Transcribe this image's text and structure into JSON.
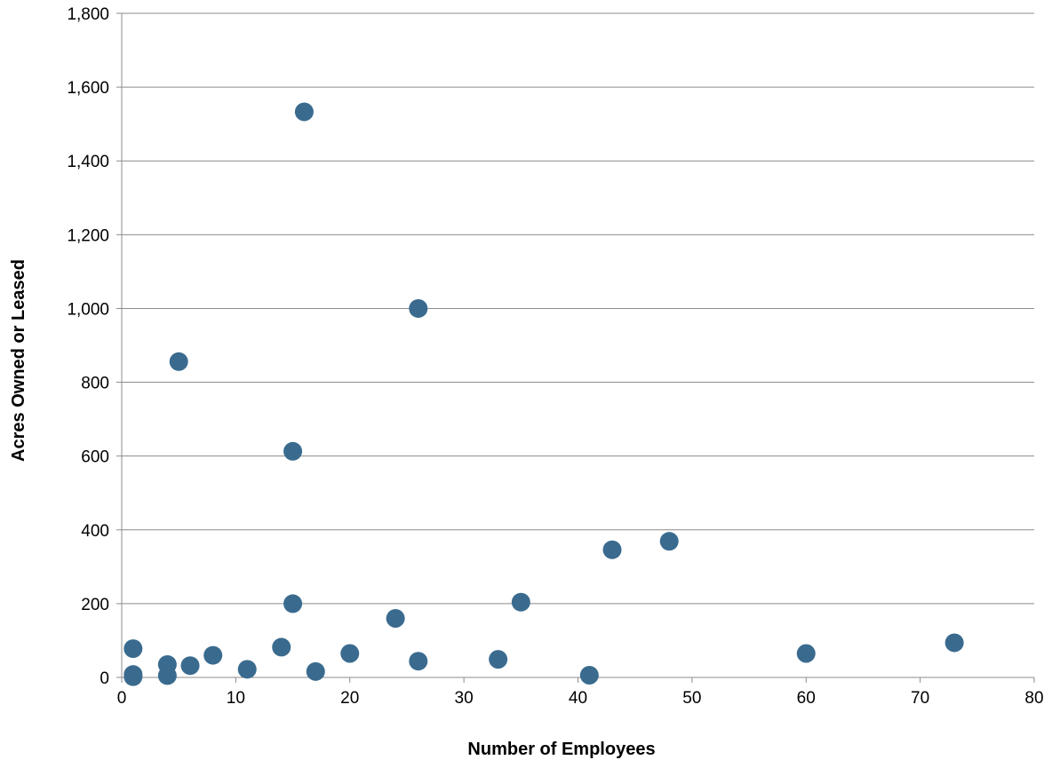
{
  "chart_data": {
    "type": "scatter",
    "title": "",
    "xlabel": "Number of Employees",
    "ylabel": "Acres Owned or Leased",
    "xlim": [
      0,
      80
    ],
    "ylim": [
      0,
      1800
    ],
    "xticks": [
      0,
      10,
      20,
      30,
      40,
      50,
      60,
      70,
      80
    ],
    "yticks": [
      0,
      200,
      400,
      600,
      800,
      1000,
      1200,
      1400,
      1600,
      1800
    ],
    "xtick_labels": [
      "0",
      "10",
      "20",
      "30",
      "40",
      "50",
      "60",
      "70",
      "80"
    ],
    "ytick_labels": [
      "0",
      "200",
      "400",
      "600",
      "800",
      "1,000",
      "1,200",
      "1,400",
      "1,600",
      "1,800"
    ],
    "grid": "horizontal",
    "legend": "none",
    "series": [
      {
        "color": "#3a6b8f",
        "points": [
          {
            "x": 1,
            "y": 78
          },
          {
            "x": 1,
            "y": 8
          },
          {
            "x": 1,
            "y": 2
          },
          {
            "x": 4,
            "y": 35
          },
          {
            "x": 4,
            "y": 5
          },
          {
            "x": 5,
            "y": 856
          },
          {
            "x": 6,
            "y": 32
          },
          {
            "x": 8,
            "y": 60
          },
          {
            "x": 11,
            "y": 22
          },
          {
            "x": 14,
            "y": 82
          },
          {
            "x": 15,
            "y": 613
          },
          {
            "x": 15,
            "y": 200
          },
          {
            "x": 16,
            "y": 1533
          },
          {
            "x": 17,
            "y": 16
          },
          {
            "x": 20,
            "y": 65
          },
          {
            "x": 24,
            "y": 160
          },
          {
            "x": 26,
            "y": 1000
          },
          {
            "x": 26,
            "y": 44
          },
          {
            "x": 33,
            "y": 49
          },
          {
            "x": 35,
            "y": 204
          },
          {
            "x": 41,
            "y": 6
          },
          {
            "x": 43,
            "y": 346
          },
          {
            "x": 48,
            "y": 369
          },
          {
            "x": 60,
            "y": 65
          },
          {
            "x": 73,
            "y": 94
          }
        ]
      }
    ]
  }
}
